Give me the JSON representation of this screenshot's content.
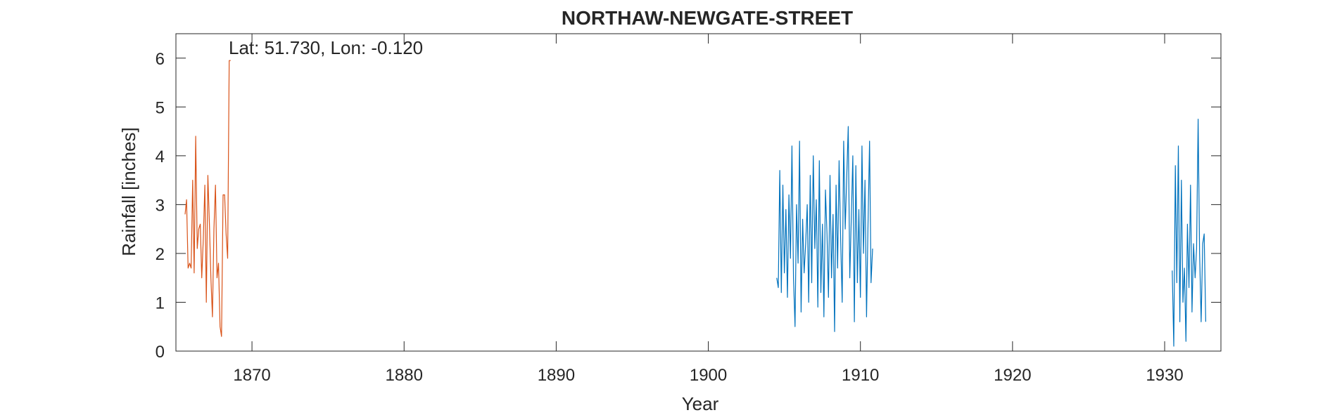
{
  "chart_data": {
    "type": "line",
    "title": "NORTHAW-NEWGATE-STREET",
    "annotation": "Lat: 51.730, Lon: -0.120",
    "xlabel": "Year",
    "ylabel": "Rainfall [inches]",
    "xlim": [
      1865.0,
      1933.7
    ],
    "ylim": [
      0,
      6.5
    ],
    "xticks": [
      1870,
      1880,
      1890,
      1900,
      1910,
      1920,
      1930
    ],
    "yticks": [
      0,
      1,
      2,
      3,
      4,
      5,
      6
    ],
    "grid": false,
    "legend": "none",
    "series": [
      {
        "color": "#D95319",
        "x": [
          1865.6,
          1865.7,
          1865.8,
          1865.9,
          1866.0,
          1866.1,
          1866.2,
          1866.3,
          1866.4,
          1866.5,
          1866.6,
          1866.7,
          1866.8,
          1866.9,
          1867.0,
          1867.1,
          1867.2,
          1867.3,
          1867.4,
          1867.5,
          1867.6,
          1867.7,
          1867.8,
          1867.9,
          1868.0,
          1868.1,
          1868.2,
          1868.3,
          1868.4,
          1868.5,
          1868.6
        ],
        "y": [
          2.8,
          3.1,
          1.7,
          1.8,
          1.7,
          3.5,
          1.6,
          4.4,
          2.1,
          2.5,
          2.6,
          1.5,
          2.3,
          3.4,
          1.0,
          3.6,
          2.6,
          1.5,
          0.7,
          2.5,
          3.4,
          1.5,
          1.8,
          0.5,
          0.3,
          3.2,
          3.2,
          2.4,
          1.9,
          5.95,
          5.95
        ]
      },
      {
        "color": "#0072BD",
        "x": [
          1904.5,
          1904.6,
          1904.7,
          1904.8,
          1904.9,
          1905.0,
          1905.1,
          1905.2,
          1905.3,
          1905.4,
          1905.5,
          1905.6,
          1905.7,
          1905.8,
          1905.9,
          1906.0,
          1906.1,
          1906.2,
          1906.3,
          1906.4,
          1906.5,
          1906.6,
          1906.7,
          1906.8,
          1906.9,
          1907.0,
          1907.1,
          1907.2,
          1907.3,
          1907.4,
          1907.5,
          1907.6,
          1907.7,
          1907.8,
          1907.9,
          1908.0,
          1908.1,
          1908.2,
          1908.3,
          1908.4,
          1908.5,
          1908.6,
          1908.7,
          1908.8,
          1908.9,
          1909.0,
          1909.1,
          1909.2,
          1909.3,
          1909.4,
          1909.5,
          1909.6,
          1909.7,
          1909.8,
          1909.9,
          1910.0,
          1910.1,
          1910.2,
          1910.3,
          1910.4,
          1910.5,
          1910.6,
          1910.7,
          1910.8
        ],
        "y": [
          1.5,
          1.3,
          3.7,
          1.2,
          3.4,
          1.6,
          2.9,
          1.1,
          3.2,
          1.9,
          4.2,
          1.5,
          0.5,
          3.0,
          1.8,
          4.3,
          0.8,
          2.7,
          1.6,
          2.2,
          3.0,
          1.0,
          3.6,
          1.4,
          4.0,
          2.1,
          3.1,
          0.9,
          3.9,
          1.2,
          2.6,
          0.7,
          3.3,
          2.4,
          1.1,
          3.6,
          1.5,
          2.8,
          0.4,
          3.4,
          1.7,
          3.9,
          2.3,
          1.0,
          4.3,
          2.5,
          3.6,
          4.6,
          1.5,
          2.7,
          4.0,
          0.6,
          3.8,
          1.4,
          2.9,
          1.1,
          4.2,
          2.0,
          3.5,
          0.7,
          2.6,
          4.3,
          1.4,
          2.1
        ]
      },
      {
        "color": "#0072BD",
        "x": [
          1930.5,
          1930.6,
          1930.7,
          1930.8,
          1930.9,
          1931.0,
          1931.1,
          1931.2,
          1931.3,
          1931.4,
          1931.5,
          1931.6,
          1931.7,
          1931.8,
          1931.9,
          1932.0,
          1932.1,
          1932.2,
          1932.3,
          1932.4,
          1932.5,
          1932.6,
          1932.7
        ],
        "y": [
          1.65,
          0.1,
          3.8,
          1.4,
          4.2,
          0.6,
          3.5,
          1.0,
          1.7,
          0.2,
          2.6,
          1.3,
          3.4,
          0.8,
          2.2,
          1.5,
          2.1,
          4.75,
          2.0,
          0.6,
          2.2,
          2.4,
          0.6
        ]
      }
    ]
  }
}
